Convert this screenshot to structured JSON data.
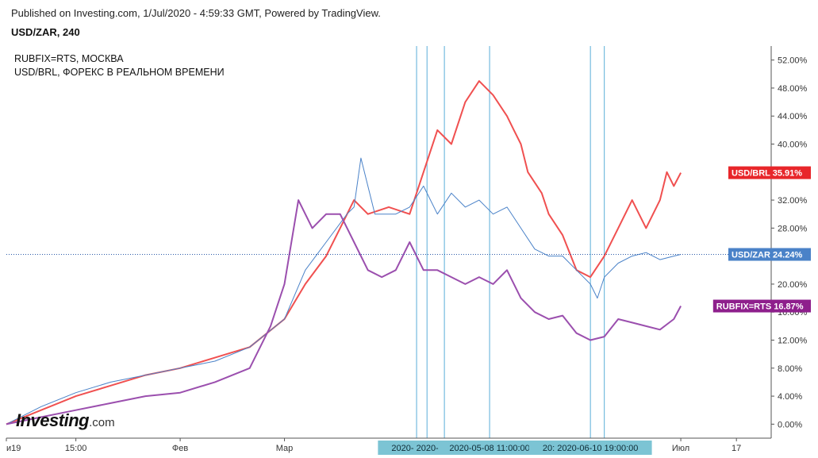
{
  "header": {
    "published": "Published on Investing.com, 1/Jul/2020 - 4:59:33 GMT, Powered by TradingView.",
    "symbol": "USD/ZAR, 240"
  },
  "legend": [
    "RUBFIX=RTS, МОСКВА",
    "USD/BRL, ФОРЕКС В РЕАЛЬНОМ ВРЕМЕНИ"
  ],
  "logo": {
    "main": "Investing",
    "suffix": ".com"
  },
  "chart_data": {
    "type": "line",
    "y_unit": "%",
    "ylim": [
      -2,
      54
    ],
    "y_ticks": [
      "52.00%",
      "48.00%",
      "44.00%",
      "40.00%",
      "36.00%",
      "32.00%",
      "28.00%",
      "24.00%",
      "20.00%",
      "16.00%",
      "12.00%",
      "8.00%",
      "4.00%",
      "0.00%"
    ],
    "y_tick_values": [
      52,
      48,
      44,
      40,
      36,
      32,
      28,
      24,
      20,
      16,
      12,
      8,
      4,
      0
    ],
    "x_ticks": [
      "и19",
      "15:00",
      "Фев",
      "Мар",
      "Июл",
      "17"
    ],
    "x_tick_positions": [
      0.0,
      0.1,
      0.25,
      0.4,
      0.97,
      1.05
    ],
    "xlim": [
      0,
      1.1
    ],
    "vertical_markers": [
      {
        "x": 0.59,
        "label": ""
      },
      {
        "x": 0.605,
        "label": ""
      },
      {
        "x": 0.63,
        "label": "2020- 2020-04-06 03:00:00"
      },
      {
        "x": 0.695,
        "label": "2020-05-08 11:00:00"
      },
      {
        "x": 0.84,
        "label": "20: 2020-06-10 19:00:00"
      },
      {
        "x": 0.86,
        "label": ""
      }
    ],
    "series": [
      {
        "name": "USD/BRL",
        "color": "#f05050",
        "label_color": "#e8262a",
        "last_label": "35.91%",
        "last_value": 35.91,
        "x": [
          0.0,
          0.05,
          0.1,
          0.15,
          0.2,
          0.25,
          0.3,
          0.35,
          0.4,
          0.43,
          0.46,
          0.48,
          0.5,
          0.52,
          0.55,
          0.58,
          0.6,
          0.62,
          0.64,
          0.66,
          0.68,
          0.7,
          0.72,
          0.73,
          0.74,
          0.75,
          0.77,
          0.78,
          0.8,
          0.82,
          0.84,
          0.86,
          0.88,
          0.9,
          0.92,
          0.94,
          0.95,
          0.96,
          0.97
        ],
        "y": [
          0,
          2,
          4,
          5.5,
          7,
          8,
          9.5,
          11,
          15,
          20,
          24,
          28,
          32,
          30,
          31,
          30,
          36,
          42,
          40,
          46,
          49,
          47,
          44,
          42,
          40,
          36,
          33,
          30,
          27,
          22,
          21,
          24,
          28,
          32,
          28,
          32,
          36,
          34,
          35.91
        ]
      },
      {
        "name": "USD/ZAR",
        "color": "#4a82c8",
        "label_color": "#4a82c8",
        "last_label": "24.24%",
        "last_value": 24.24,
        "x": [
          0.0,
          0.05,
          0.1,
          0.15,
          0.2,
          0.25,
          0.3,
          0.35,
          0.4,
          0.43,
          0.46,
          0.49,
          0.5,
          0.51,
          0.53,
          0.56,
          0.58,
          0.6,
          0.62,
          0.64,
          0.66,
          0.68,
          0.7,
          0.72,
          0.74,
          0.76,
          0.78,
          0.8,
          0.82,
          0.84,
          0.85,
          0.86,
          0.88,
          0.9,
          0.92,
          0.94,
          0.96,
          0.97
        ],
        "y": [
          0,
          2.5,
          4.5,
          6,
          7,
          8,
          9,
          11,
          15,
          22,
          26,
          30,
          31,
          38,
          30,
          30,
          31,
          34,
          30,
          33,
          31,
          32,
          30,
          31,
          28,
          25,
          24,
          24,
          22,
          20,
          18,
          21,
          23,
          24,
          24.5,
          23.5,
          24,
          24.24
        ]
      },
      {
        "name": "RUBFIX=RTS",
        "color": "#9b4fae",
        "label_color": "#8e1f8c",
        "last_label": "16.87%",
        "last_value": 16.87,
        "x": [
          0.0,
          0.05,
          0.1,
          0.15,
          0.2,
          0.25,
          0.3,
          0.35,
          0.38,
          0.4,
          0.42,
          0.44,
          0.46,
          0.48,
          0.5,
          0.52,
          0.54,
          0.56,
          0.58,
          0.6,
          0.62,
          0.64,
          0.66,
          0.68,
          0.7,
          0.72,
          0.74,
          0.76,
          0.78,
          0.8,
          0.82,
          0.84,
          0.86,
          0.88,
          0.9,
          0.92,
          0.94,
          0.96,
          0.97
        ],
        "y": [
          0,
          1,
          2,
          3,
          4,
          4.5,
          6,
          8,
          14,
          20,
          32,
          28,
          30,
          30,
          26,
          22,
          21,
          22,
          26,
          22,
          22,
          21,
          20,
          21,
          20,
          22,
          18,
          16,
          15,
          15.5,
          13,
          12,
          12.5,
          15,
          14.5,
          14,
          13.5,
          15,
          16.87
        ]
      }
    ]
  }
}
